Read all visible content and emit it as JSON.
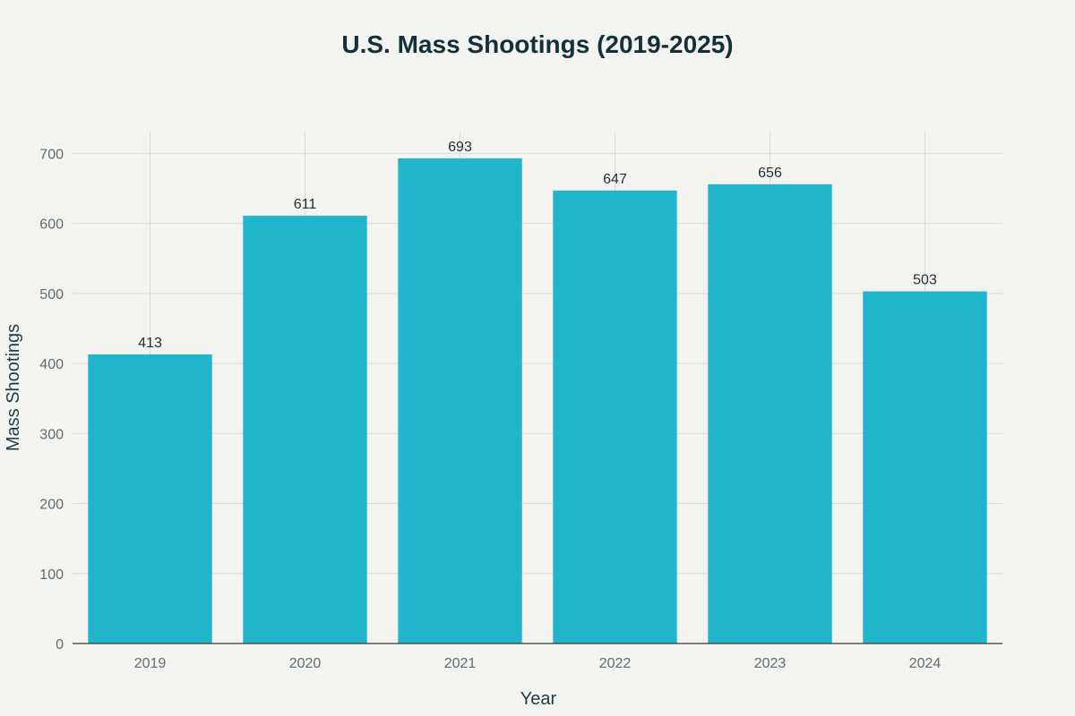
{
  "chart_data": {
    "type": "bar",
    "title": "U.S. Mass Shootings (2019-2025)",
    "xlabel": "Year",
    "ylabel": "Mass Shootings",
    "categories": [
      "2019",
      "2020",
      "2021",
      "2022",
      "2023",
      "2024"
    ],
    "values": [
      413,
      611,
      693,
      647,
      656,
      503
    ],
    "ylim": [
      0,
      730
    ],
    "yticks": [
      0,
      100,
      200,
      300,
      400,
      500,
      600,
      700
    ],
    "grid": true,
    "bar_color": "#21b5cb",
    "show_data_labels": true
  }
}
